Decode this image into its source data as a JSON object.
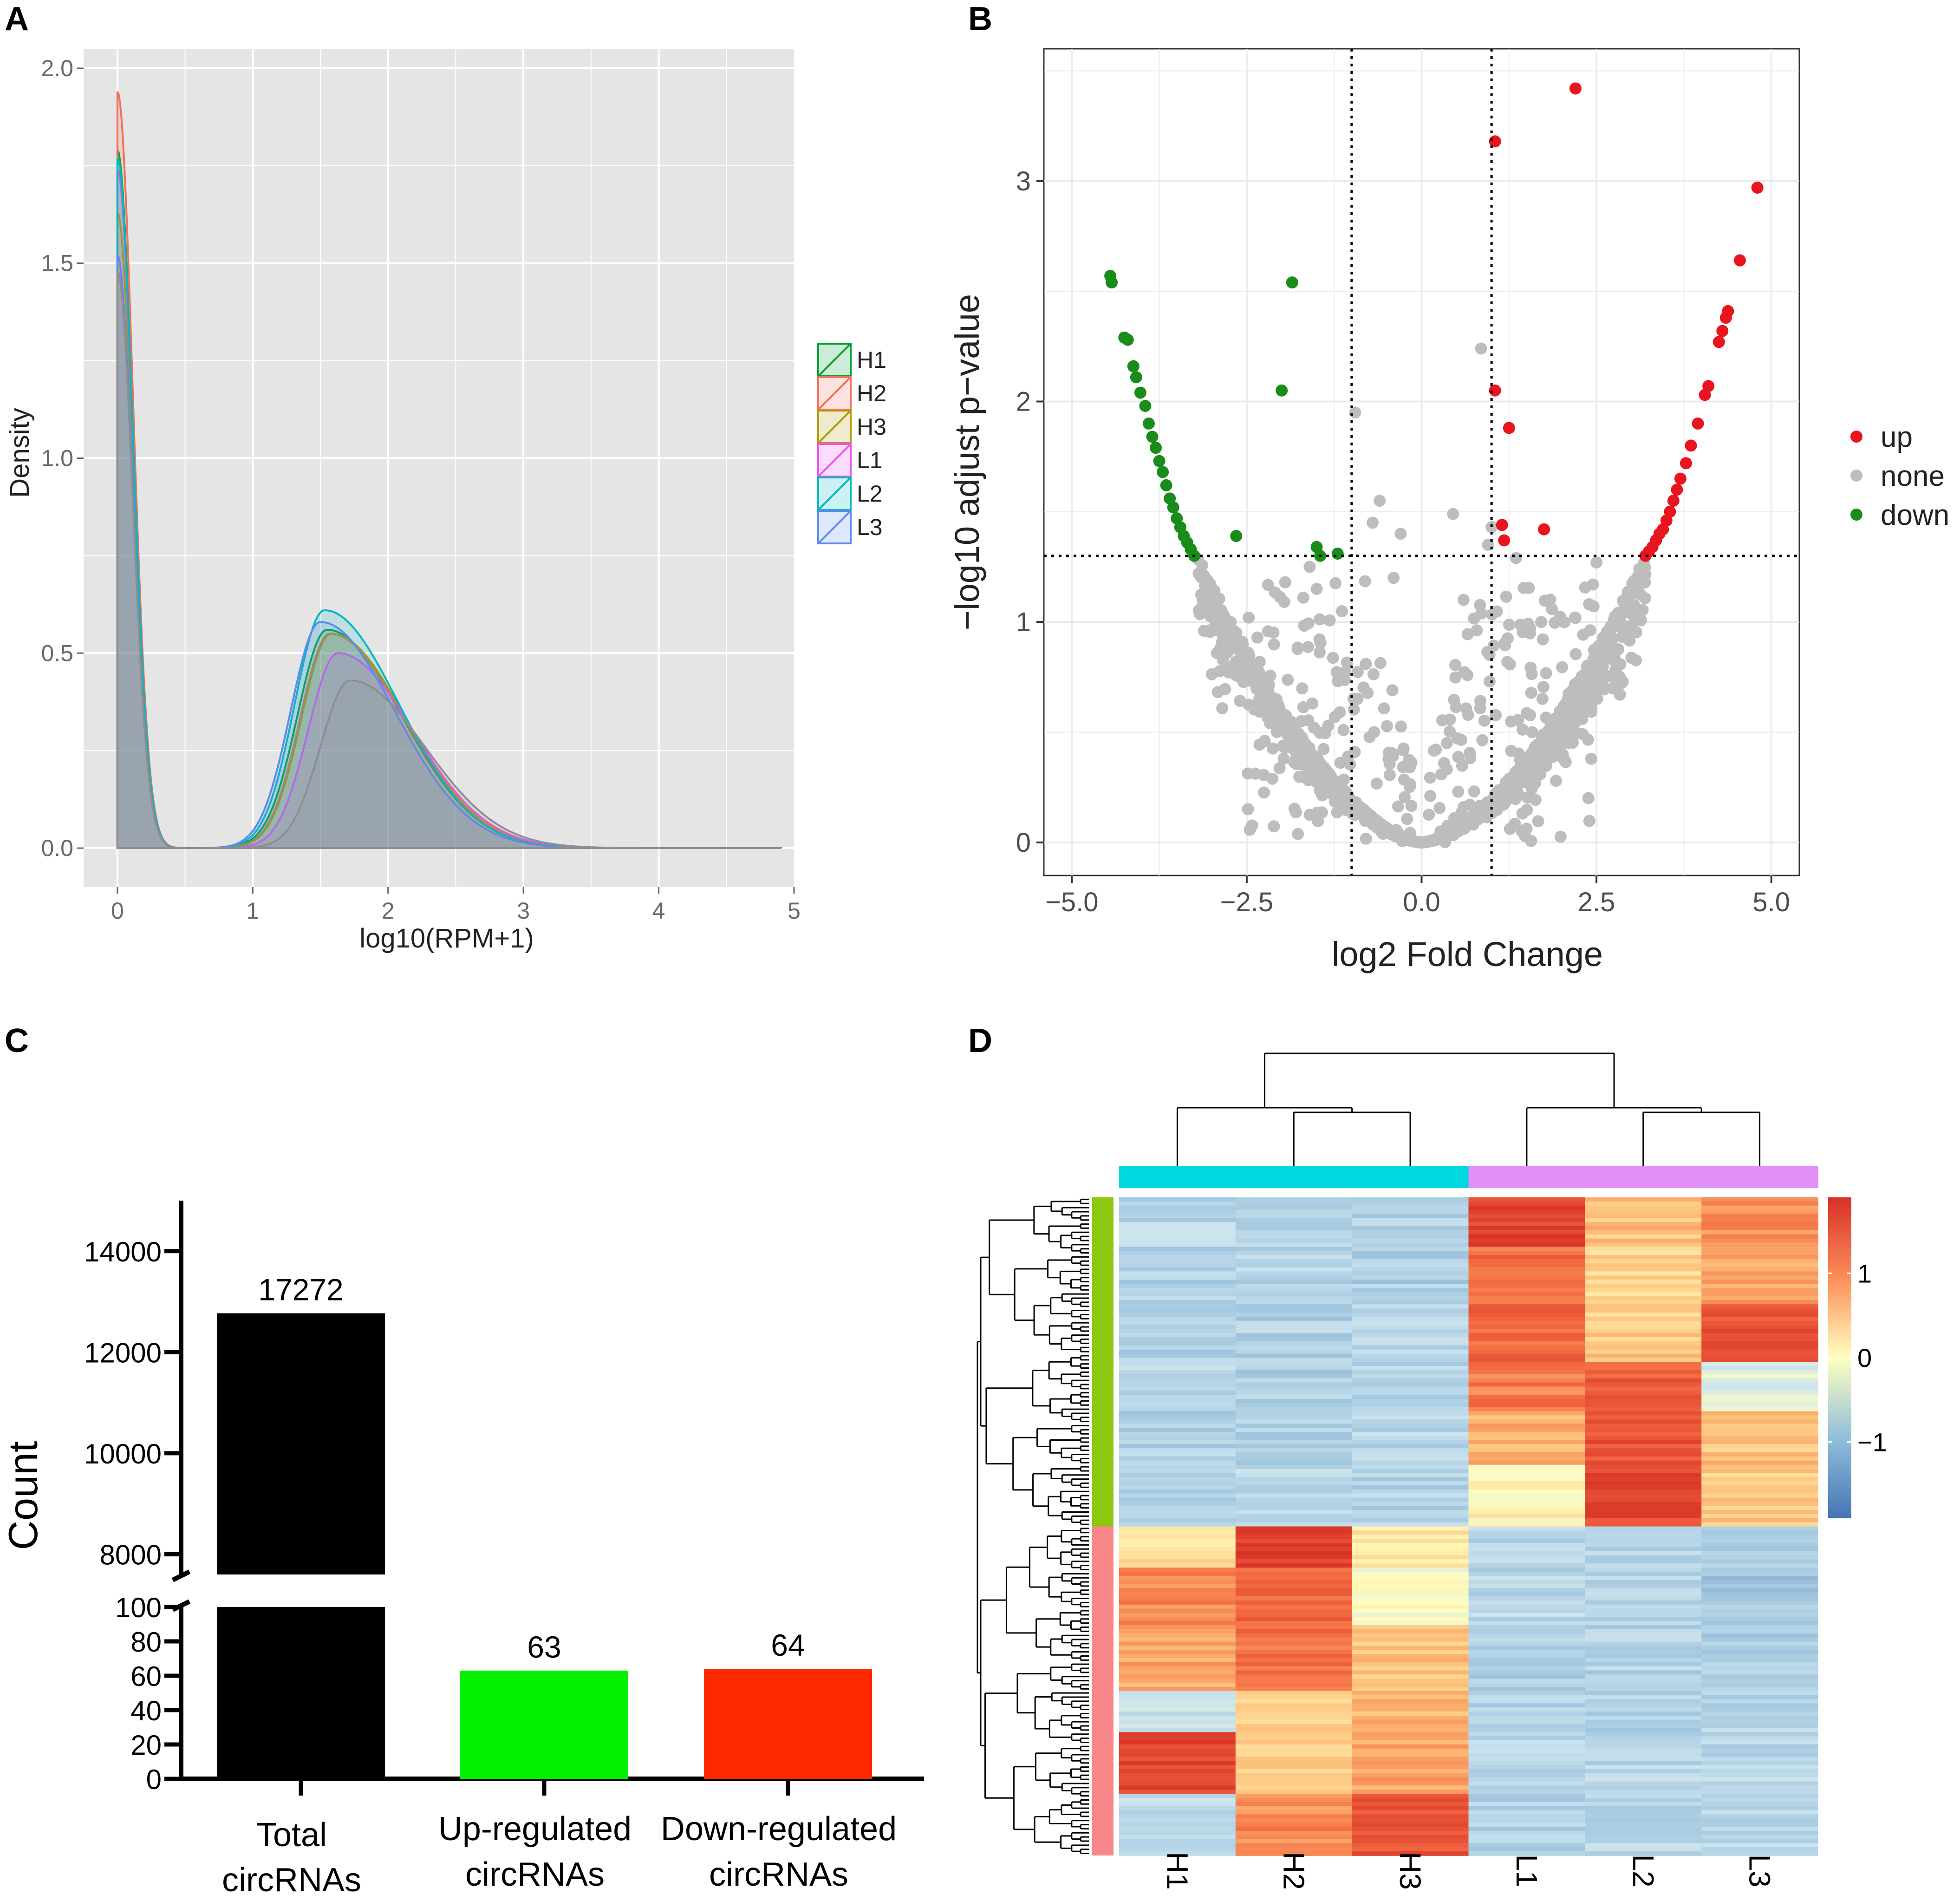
{
  "panels": {
    "a": "A",
    "b": "B",
    "c": "C",
    "d": "D"
  },
  "colors": {
    "H1": "#00A035",
    "H2": "#F0705A",
    "H3": "#B29A00",
    "L1": "#F050F0",
    "L2": "#00B8C0",
    "L3": "#5A8AF0",
    "up": "#E8141E",
    "none": "#BDBDBD",
    "down": "#1A8C1A",
    "bar_total": "#000000",
    "bar_up": "#00F000",
    "bar_down": "#FF2800",
    "group_H": "#00D8E0",
    "group_L": "#E090F8",
    "row_group1": "#8DC810",
    "row_group2": "#F8878A",
    "heat_low": "#4575B4",
    "heat_mid": "#FFFFBF",
    "heat_high": "#D73027"
  },
  "chart_data": [
    {
      "panel": "A",
      "type": "area",
      "xlabel": "log10(RPM+1)",
      "ylabel": "Density",
      "xlim": [
        -0.25,
        5.0
      ],
      "ylim": [
        -0.1,
        2.05
      ],
      "xticks": [
        "0",
        "1",
        "2",
        "3",
        "4",
        "5"
      ],
      "yticks": [
        "0.0",
        "0.5",
        "1.0",
        "1.5",
        "2.0"
      ],
      "legend_position": "right",
      "series": [
        {
          "name": "H1",
          "peak1": 1.79,
          "peak2": 0.56,
          "mu2": 1.55
        },
        {
          "name": "H2",
          "peak1": 1.94,
          "peak2": 0.55,
          "mu2": 1.57
        },
        {
          "name": "H3",
          "peak1": 1.63,
          "peak2": 0.55,
          "mu2": 1.58
        },
        {
          "name": "L1",
          "peak1": 1.74,
          "peak2": 0.5,
          "mu2": 1.63
        },
        {
          "name": "L2",
          "peak1": 1.77,
          "peak2": 0.61,
          "mu2": 1.53
        },
        {
          "name": "L3",
          "peak1": 1.52,
          "peak2": 0.58,
          "mu2": 1.5
        },
        {
          "name": "",
          "peak1": 1.48,
          "peak2": 0.43,
          "mu2": 1.72
        }
      ]
    },
    {
      "panel": "B",
      "type": "scatter",
      "xlabel": "log2 Fold Change",
      "ylabel": "−log10 adjust p−value",
      "xlim": [
        -5.4,
        5.4
      ],
      "ylim": [
        -0.15,
        3.6
      ],
      "xticks": [
        "−5.0",
        "−2.5",
        "0.0",
        "2.5",
        "5.0"
      ],
      "yticks": [
        "0",
        "1",
        "2",
        "3"
      ],
      "vlines": [
        -1,
        1
      ],
      "hline": 1.3,
      "legend": [
        "up",
        "none",
        "down"
      ],
      "points_up": [
        [
          2.2,
          3.42
        ],
        [
          1.05,
          3.18
        ],
        [
          4.8,
          2.97
        ],
        [
          4.55,
          2.64
        ],
        [
          4.38,
          2.41
        ],
        [
          4.35,
          2.38
        ],
        [
          4.3,
          2.32
        ],
        [
          4.25,
          2.27
        ],
        [
          4.1,
          2.07
        ],
        [
          4.05,
          2.03
        ],
        [
          1.05,
          2.05
        ],
        [
          1.25,
          1.88
        ],
        [
          3.95,
          1.9
        ],
        [
          3.85,
          1.8
        ],
        [
          3.78,
          1.72
        ],
        [
          3.7,
          1.65
        ],
        [
          3.65,
          1.6
        ],
        [
          3.6,
          1.55
        ],
        [
          3.55,
          1.5
        ],
        [
          3.5,
          1.46
        ],
        [
          3.45,
          1.42
        ],
        [
          3.4,
          1.4
        ],
        [
          3.35,
          1.37
        ],
        [
          3.3,
          1.34
        ],
        [
          3.25,
          1.32
        ],
        [
          3.2,
          1.3
        ],
        [
          1.15,
          1.44
        ],
        [
          1.18,
          1.37
        ],
        [
          1.75,
          1.42
        ]
      ],
      "points_down": [
        [
          -4.45,
          2.57
        ],
        [
          -4.43,
          2.54
        ],
        [
          -4.25,
          2.29
        ],
        [
          -4.2,
          2.28
        ],
        [
          -4.12,
          2.16
        ],
        [
          -4.08,
          2.11
        ],
        [
          -4.02,
          2.04
        ],
        [
          -3.95,
          1.98
        ],
        [
          -3.9,
          1.9
        ],
        [
          -3.85,
          1.84
        ],
        [
          -3.8,
          1.79
        ],
        [
          -3.75,
          1.73
        ],
        [
          -3.7,
          1.68
        ],
        [
          -3.65,
          1.62
        ],
        [
          -3.6,
          1.56
        ],
        [
          -3.55,
          1.52
        ],
        [
          -3.5,
          1.47
        ],
        [
          -3.45,
          1.43
        ],
        [
          -3.4,
          1.39
        ],
        [
          -3.35,
          1.36
        ],
        [
          -3.3,
          1.33
        ],
        [
          -3.25,
          1.3
        ],
        [
          -1.85,
          2.54
        ],
        [
          -2.0,
          2.05
        ],
        [
          -2.65,
          1.39
        ],
        [
          -1.5,
          1.34
        ],
        [
          -1.45,
          1.3
        ],
        [
          -1.2,
          1.31
        ]
      ],
      "points_none_extra": [
        [
          0.85,
          2.24
        ],
        [
          -0.95,
          1.95
        ],
        [
          -0.6,
          1.55
        ],
        [
          -0.7,
          1.45
        ],
        [
          0.45,
          1.49
        ],
        [
          0.95,
          1.35
        ],
        [
          1.35,
          1.29
        ],
        [
          2.5,
          1.27
        ],
        [
          -0.3,
          1.4
        ],
        [
          1.0,
          1.43
        ],
        [
          -1.95,
          1.18
        ],
        [
          -1.6,
          1.25
        ],
        [
          -1.5,
          1.15
        ],
        [
          2.45,
          1.17
        ],
        [
          0.6,
          1.1
        ],
        [
          -0.4,
          1.2
        ]
      ]
    },
    {
      "panel": "C",
      "type": "bar",
      "categories": [
        [
          "Total",
          "circRNAs"
        ],
        [
          "Up-regulated",
          "circRNAs"
        ],
        [
          "Down-regulated",
          "circRNAs"
        ]
      ],
      "values": [
        17272,
        63,
        64
      ],
      "labels": [
        "17272",
        "63",
        "64"
      ],
      "ylabel": "Count",
      "axis_break": {
        "lower": [
          0,
          100
        ],
        "upper": [
          7600,
          15000
        ]
      },
      "yticks_lower": [
        "0",
        "20",
        "40",
        "60",
        "80",
        "100"
      ],
      "yticks_upper": [
        "8000",
        "10000",
        "12000",
        "14000"
      ]
    },
    {
      "panel": "D",
      "type": "heatmap",
      "columns": [
        "H1",
        "H2",
        "H3",
        "L1",
        "L2",
        "L3"
      ],
      "column_groups": [
        "H",
        "H",
        "H",
        "L",
        "L",
        "L"
      ],
      "colorbar_ticks": [
        "1",
        "0",
        "−1"
      ],
      "colorbar_range": [
        -1.9,
        1.9
      ],
      "row_groups": [
        {
          "name": "group1",
          "rows": 80,
          "blocks": [
            {
              "n": 12,
              "v": [
                -0.7,
                -0.8,
                -0.75,
                1.7,
                0.6,
                1.0
              ]
            },
            {
              "n": 14,
              "v": [
                -0.75,
                -0.7,
                -0.8,
                1.2,
                0.4,
                0.8
              ]
            },
            {
              "n": 14,
              "v": [
                -0.8,
                -0.8,
                -0.7,
                1.3,
                0.5,
                1.5
              ]
            },
            {
              "n": 12,
              "v": [
                -0.7,
                -0.8,
                -0.75,
                1.1,
                1.4,
                -0.3
              ]
            },
            {
              "n": 13,
              "v": [
                -0.8,
                -0.75,
                -0.7,
                0.7,
                1.5,
                0.6
              ]
            },
            {
              "n": 15,
              "v": [
                -0.75,
                -0.7,
                -0.75,
                0.1,
                1.6,
                0.5
              ]
            }
          ]
        },
        {
          "name": "group2",
          "rows": 80,
          "blocks": [
            {
              "n": 10,
              "v": [
                0.3,
                1.7,
                0.2,
                -0.7,
                -0.7,
                -0.8
              ]
            },
            {
              "n": 14,
              "v": [
                1.0,
                1.3,
                -0.1,
                -0.7,
                -0.75,
                -0.9
              ]
            },
            {
              "n": 16,
              "v": [
                0.8,
                1.2,
                0.6,
                -0.8,
                -0.75,
                -0.8
              ]
            },
            {
              "n": 10,
              "v": [
                -0.5,
                0.5,
                0.7,
                -0.75,
                -0.75,
                -0.7
              ]
            },
            {
              "n": 15,
              "v": [
                1.6,
                0.4,
                0.8,
                -0.7,
                -0.7,
                -0.7
              ]
            },
            {
              "n": 15,
              "v": [
                -0.6,
                1.0,
                1.5,
                -0.75,
                -0.7,
                -0.7
              ]
            }
          ]
        }
      ]
    }
  ]
}
